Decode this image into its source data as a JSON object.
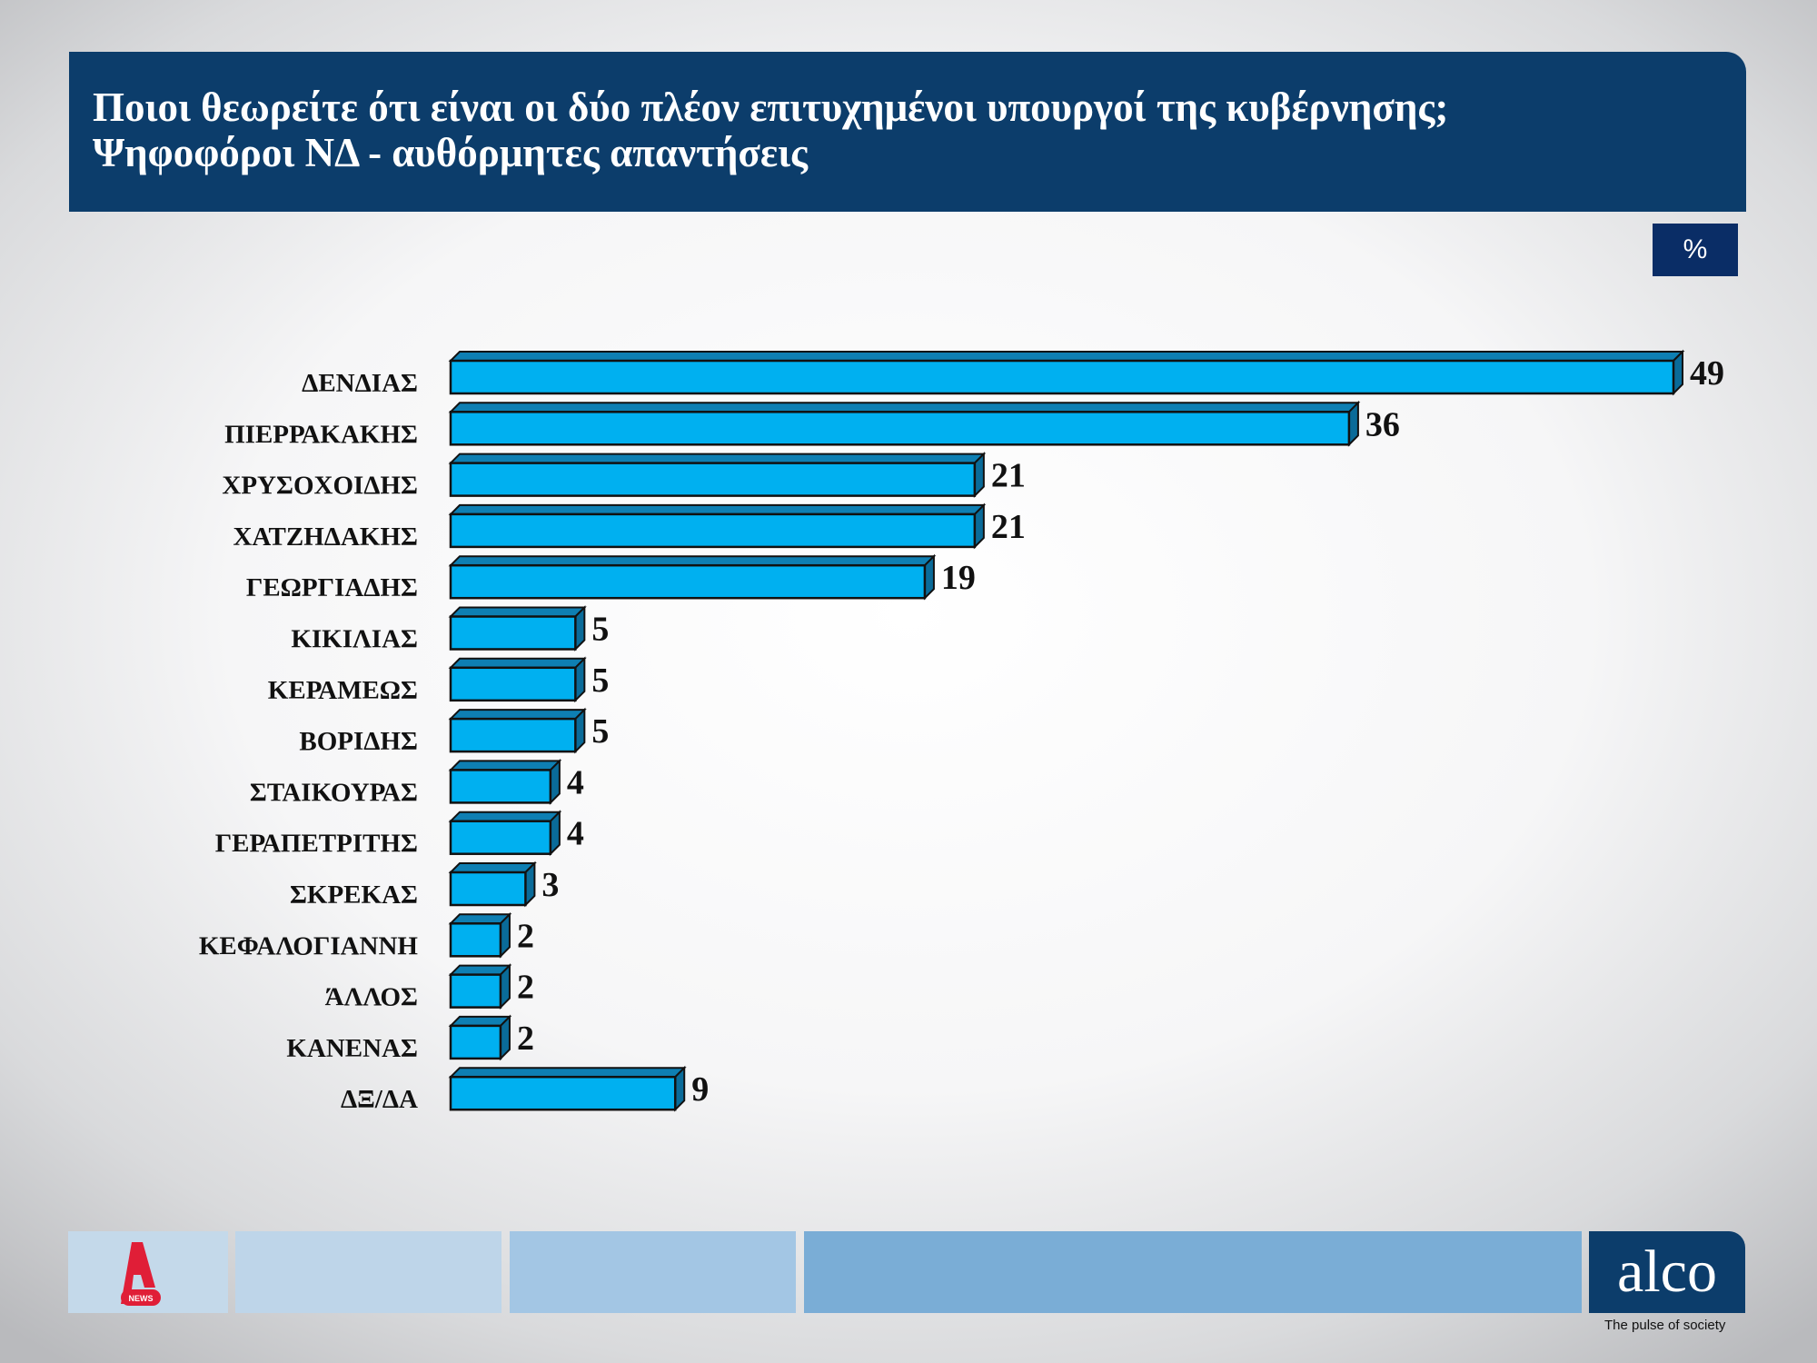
{
  "header": {
    "title_line1": "Ποιοι θεωρείτε ότι είναι οι δύο πλέον επιτυχημένοι υπουργοί της κυβέρνησης;",
    "title_line2": "Ψηφοφόροι ΝΔ - αυθόρμητες απαντήσεις"
  },
  "unit_label": "%",
  "chart_data": {
    "type": "bar",
    "orientation": "horizontal",
    "title": "",
    "xlabel": "",
    "ylabel": "%",
    "categories": [
      "ΔΕΝΔΙΑΣ",
      "ΠΙΕΡΡΑΚΑΚΗΣ",
      "ΧΡΥΣΟΧΟΙΔΗΣ",
      "ΧΑΤΖΗΔΑΚΗΣ",
      "ΓΕΩΡΓΙΑΔΗΣ",
      "ΚΙΚΙΛΙΑΣ",
      "ΚΕΡΑΜΕΩΣ",
      "ΒΟΡΙΔΗΣ",
      "ΣΤΑΙΚΟΥΡΑΣ",
      "ΓΕΡΑΠΕΤΡΙΤΗΣ",
      "ΣΚΡΕΚΑΣ",
      "ΚΕΦΑΛΟΓΙΑΝΝΗ",
      "ΆΛΛΟΣ",
      "ΚΑΝΕΝΑΣ",
      "ΔΞ/ΔΑ"
    ],
    "values": [
      49,
      36,
      21,
      21,
      19,
      5,
      5,
      5,
      4,
      4,
      3,
      2,
      2,
      2,
      9
    ],
    "xlim": [
      0,
      49
    ],
    "grid": false,
    "legend": "none",
    "colors": {
      "bar_front": "#00b0f0",
      "bar_top": "#0e7fb3",
      "bar_side": "#0a6b99"
    }
  },
  "footer": {
    "logo_left": "A NEWS",
    "logo_right": "alco",
    "tagline": "The pulse of society"
  }
}
